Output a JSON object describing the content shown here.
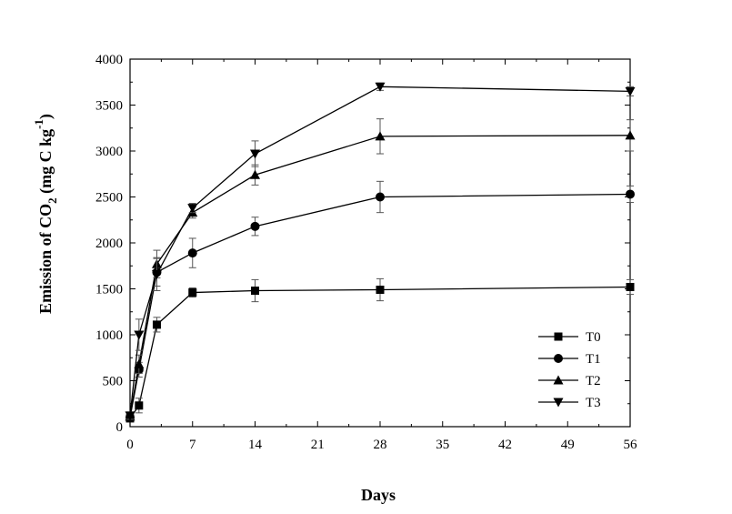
{
  "chart_data": {
    "type": "line",
    "xlabel": "Days",
    "ylabel": {
      "part1": "Emission of CO",
      "sub": "2",
      "part2": " (mg C kg",
      "sup": "-1",
      "part3": ")"
    },
    "xlim": [
      0,
      56
    ],
    "ylim": [
      0,
      4000
    ],
    "x_ticks": [
      0,
      7,
      14,
      21,
      28,
      35,
      42,
      49,
      56
    ],
    "x_minor_ticks": [
      3.5,
      10.5,
      17.5,
      24.5,
      31.5,
      38.5,
      45.5,
      52.5
    ],
    "y_ticks": [
      0,
      500,
      1000,
      1500,
      2000,
      2500,
      3000,
      3500,
      4000
    ],
    "y_minor_ticks": [
      250,
      750,
      1250,
      1750,
      2250,
      2750,
      3250,
      3750
    ],
    "x_tick_labels": [
      "0",
      "7",
      "14",
      "21",
      "28",
      "35",
      "42",
      "49",
      "56"
    ],
    "y_tick_labels": [
      "0",
      "500",
      "1000",
      "1500",
      "2000",
      "2500",
      "3000",
      "3500",
      "4000"
    ],
    "grid": false,
    "legend_position": "bottom-right",
    "x": [
      0,
      1,
      3,
      7,
      14,
      28,
      56
    ],
    "series": [
      {
        "name": "T0",
        "marker": "square",
        "values": [
          90,
          230,
          1110,
          1460,
          1480,
          1490,
          1520
        ],
        "errors": [
          30,
          80,
          80,
          50,
          120,
          120,
          80
        ]
      },
      {
        "name": "T1",
        "marker": "circle",
        "values": [
          100,
          620,
          1680,
          1890,
          2180,
          2500,
          2530
        ],
        "errors": [
          30,
          80,
          150,
          160,
          100,
          170,
          90
        ]
      },
      {
        "name": "T2",
        "marker": "triangle-up",
        "values": [
          110,
          680,
          1770,
          2330,
          2740,
          3160,
          3170
        ],
        "errors": [
          30,
          100,
          150,
          60,
          110,
          190,
          170
        ]
      },
      {
        "name": "T3",
        "marker": "triangle-down",
        "values": [
          120,
          1000,
          1660,
          2380,
          2970,
          3700,
          3650
        ],
        "errors": [
          40,
          170,
          180,
          50,
          140,
          40,
          50
        ]
      }
    ]
  }
}
